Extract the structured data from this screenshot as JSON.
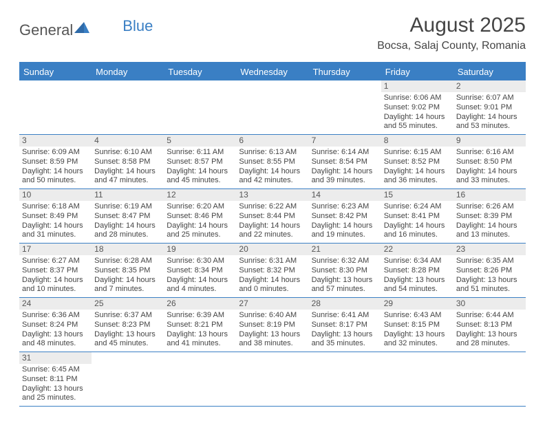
{
  "brand": {
    "part1": "General",
    "part2": "Blue"
  },
  "title": "August 2025",
  "location": "Bocsa, Salaj County, Romania",
  "colors": {
    "accent": "#3a7fc4",
    "header_text": "#ffffff",
    "daynum_bg": "#ececec",
    "text": "#444444",
    "border": "#3a7fc4"
  },
  "day_names": [
    "Sunday",
    "Monday",
    "Tuesday",
    "Wednesday",
    "Thursday",
    "Friday",
    "Saturday"
  ],
  "weeks": [
    [
      {
        "empty": true
      },
      {
        "empty": true
      },
      {
        "empty": true
      },
      {
        "empty": true
      },
      {
        "empty": true
      },
      {
        "day": "1",
        "sunrise": "Sunrise: 6:06 AM",
        "sunset": "Sunset: 9:02 PM",
        "daylight1": "Daylight: 14 hours",
        "daylight2": "and 55 minutes."
      },
      {
        "day": "2",
        "sunrise": "Sunrise: 6:07 AM",
        "sunset": "Sunset: 9:01 PM",
        "daylight1": "Daylight: 14 hours",
        "daylight2": "and 53 minutes."
      }
    ],
    [
      {
        "day": "3",
        "sunrise": "Sunrise: 6:09 AM",
        "sunset": "Sunset: 8:59 PM",
        "daylight1": "Daylight: 14 hours",
        "daylight2": "and 50 minutes."
      },
      {
        "day": "4",
        "sunrise": "Sunrise: 6:10 AM",
        "sunset": "Sunset: 8:58 PM",
        "daylight1": "Daylight: 14 hours",
        "daylight2": "and 47 minutes."
      },
      {
        "day": "5",
        "sunrise": "Sunrise: 6:11 AM",
        "sunset": "Sunset: 8:57 PM",
        "daylight1": "Daylight: 14 hours",
        "daylight2": "and 45 minutes."
      },
      {
        "day": "6",
        "sunrise": "Sunrise: 6:13 AM",
        "sunset": "Sunset: 8:55 PM",
        "daylight1": "Daylight: 14 hours",
        "daylight2": "and 42 minutes."
      },
      {
        "day": "7",
        "sunrise": "Sunrise: 6:14 AM",
        "sunset": "Sunset: 8:54 PM",
        "daylight1": "Daylight: 14 hours",
        "daylight2": "and 39 minutes."
      },
      {
        "day": "8",
        "sunrise": "Sunrise: 6:15 AM",
        "sunset": "Sunset: 8:52 PM",
        "daylight1": "Daylight: 14 hours",
        "daylight2": "and 36 minutes."
      },
      {
        "day": "9",
        "sunrise": "Sunrise: 6:16 AM",
        "sunset": "Sunset: 8:50 PM",
        "daylight1": "Daylight: 14 hours",
        "daylight2": "and 33 minutes."
      }
    ],
    [
      {
        "day": "10",
        "sunrise": "Sunrise: 6:18 AM",
        "sunset": "Sunset: 8:49 PM",
        "daylight1": "Daylight: 14 hours",
        "daylight2": "and 31 minutes."
      },
      {
        "day": "11",
        "sunrise": "Sunrise: 6:19 AM",
        "sunset": "Sunset: 8:47 PM",
        "daylight1": "Daylight: 14 hours",
        "daylight2": "and 28 minutes."
      },
      {
        "day": "12",
        "sunrise": "Sunrise: 6:20 AM",
        "sunset": "Sunset: 8:46 PM",
        "daylight1": "Daylight: 14 hours",
        "daylight2": "and 25 minutes."
      },
      {
        "day": "13",
        "sunrise": "Sunrise: 6:22 AM",
        "sunset": "Sunset: 8:44 PM",
        "daylight1": "Daylight: 14 hours",
        "daylight2": "and 22 minutes."
      },
      {
        "day": "14",
        "sunrise": "Sunrise: 6:23 AM",
        "sunset": "Sunset: 8:42 PM",
        "daylight1": "Daylight: 14 hours",
        "daylight2": "and 19 minutes."
      },
      {
        "day": "15",
        "sunrise": "Sunrise: 6:24 AM",
        "sunset": "Sunset: 8:41 PM",
        "daylight1": "Daylight: 14 hours",
        "daylight2": "and 16 minutes."
      },
      {
        "day": "16",
        "sunrise": "Sunrise: 6:26 AM",
        "sunset": "Sunset: 8:39 PM",
        "daylight1": "Daylight: 14 hours",
        "daylight2": "and 13 minutes."
      }
    ],
    [
      {
        "day": "17",
        "sunrise": "Sunrise: 6:27 AM",
        "sunset": "Sunset: 8:37 PM",
        "daylight1": "Daylight: 14 hours",
        "daylight2": "and 10 minutes."
      },
      {
        "day": "18",
        "sunrise": "Sunrise: 6:28 AM",
        "sunset": "Sunset: 8:35 PM",
        "daylight1": "Daylight: 14 hours",
        "daylight2": "and 7 minutes."
      },
      {
        "day": "19",
        "sunrise": "Sunrise: 6:30 AM",
        "sunset": "Sunset: 8:34 PM",
        "daylight1": "Daylight: 14 hours",
        "daylight2": "and 4 minutes."
      },
      {
        "day": "20",
        "sunrise": "Sunrise: 6:31 AM",
        "sunset": "Sunset: 8:32 PM",
        "daylight1": "Daylight: 14 hours",
        "daylight2": "and 0 minutes."
      },
      {
        "day": "21",
        "sunrise": "Sunrise: 6:32 AM",
        "sunset": "Sunset: 8:30 PM",
        "daylight1": "Daylight: 13 hours",
        "daylight2": "and 57 minutes."
      },
      {
        "day": "22",
        "sunrise": "Sunrise: 6:34 AM",
        "sunset": "Sunset: 8:28 PM",
        "daylight1": "Daylight: 13 hours",
        "daylight2": "and 54 minutes."
      },
      {
        "day": "23",
        "sunrise": "Sunrise: 6:35 AM",
        "sunset": "Sunset: 8:26 PM",
        "daylight1": "Daylight: 13 hours",
        "daylight2": "and 51 minutes."
      }
    ],
    [
      {
        "day": "24",
        "sunrise": "Sunrise: 6:36 AM",
        "sunset": "Sunset: 8:24 PM",
        "daylight1": "Daylight: 13 hours",
        "daylight2": "and 48 minutes."
      },
      {
        "day": "25",
        "sunrise": "Sunrise: 6:37 AM",
        "sunset": "Sunset: 8:23 PM",
        "daylight1": "Daylight: 13 hours",
        "daylight2": "and 45 minutes."
      },
      {
        "day": "26",
        "sunrise": "Sunrise: 6:39 AM",
        "sunset": "Sunset: 8:21 PM",
        "daylight1": "Daylight: 13 hours",
        "daylight2": "and 41 minutes."
      },
      {
        "day": "27",
        "sunrise": "Sunrise: 6:40 AM",
        "sunset": "Sunset: 8:19 PM",
        "daylight1": "Daylight: 13 hours",
        "daylight2": "and 38 minutes."
      },
      {
        "day": "28",
        "sunrise": "Sunrise: 6:41 AM",
        "sunset": "Sunset: 8:17 PM",
        "daylight1": "Daylight: 13 hours",
        "daylight2": "and 35 minutes."
      },
      {
        "day": "29",
        "sunrise": "Sunrise: 6:43 AM",
        "sunset": "Sunset: 8:15 PM",
        "daylight1": "Daylight: 13 hours",
        "daylight2": "and 32 minutes."
      },
      {
        "day": "30",
        "sunrise": "Sunrise: 6:44 AM",
        "sunset": "Sunset: 8:13 PM",
        "daylight1": "Daylight: 13 hours",
        "daylight2": "and 28 minutes."
      }
    ],
    [
      {
        "day": "31",
        "sunrise": "Sunrise: 6:45 AM",
        "sunset": "Sunset: 8:11 PM",
        "daylight1": "Daylight: 13 hours",
        "daylight2": "and 25 minutes."
      },
      {
        "empty": true
      },
      {
        "empty": true
      },
      {
        "empty": true
      },
      {
        "empty": true
      },
      {
        "empty": true
      },
      {
        "empty": true
      }
    ]
  ]
}
